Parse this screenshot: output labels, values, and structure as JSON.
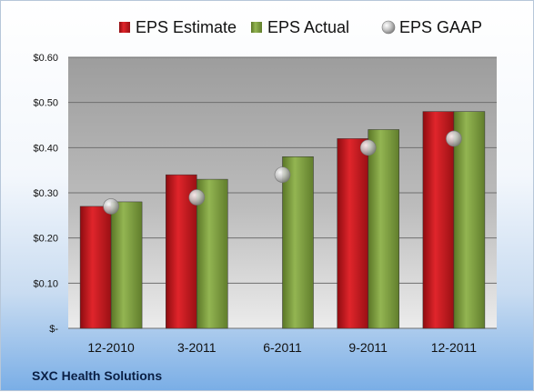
{
  "chart_data": {
    "type": "bar",
    "categories": [
      "12-2010",
      "3-2011",
      "6-2011",
      "9-2011",
      "12-2011"
    ],
    "series": [
      {
        "name": "EPS Estimate",
        "kind": "bar",
        "color": "#c8161d",
        "values": [
          0.27,
          0.34,
          null,
          0.42,
          0.48
        ]
      },
      {
        "name": "EPS Actual",
        "kind": "bar",
        "color": "#7a9a3a",
        "values": [
          0.28,
          0.33,
          0.38,
          0.44,
          0.48
        ]
      },
      {
        "name": "EPS GAAP",
        "kind": "marker",
        "color": "#a9a9a9",
        "values": [
          0.27,
          0.29,
          0.34,
          0.4,
          0.42
        ]
      }
    ],
    "ylim": [
      0,
      0.6
    ],
    "yticks": [
      0,
      0.1,
      0.2,
      0.3,
      0.4,
      0.5,
      0.6
    ],
    "ytick_labels": [
      "$-",
      "$0.10",
      "$0.20",
      "$0.30",
      "$0.40",
      "$0.50",
      "$0.60"
    ],
    "grid": true,
    "legend_position": "top"
  },
  "footer": {
    "company": "SXC Health Solutions"
  }
}
